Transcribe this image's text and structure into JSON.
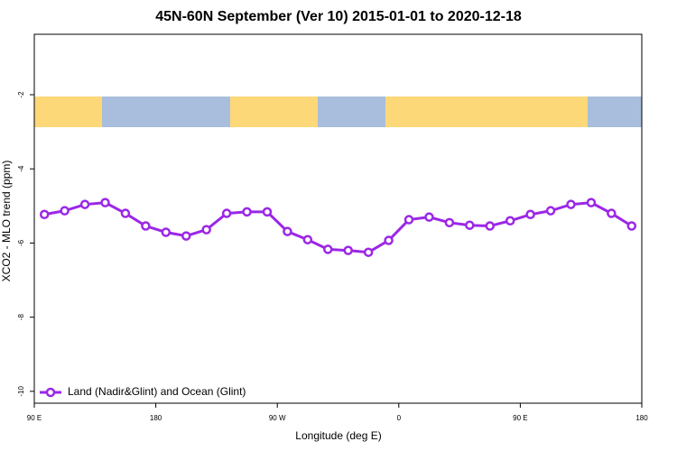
{
  "chart_data": {
    "type": "line",
    "title": "45N-60N September (Ver 10)   2015-01-01 to 2020-12-18",
    "x_label": "Longitude (deg E)",
    "y_label": "XCO2 - MLO trend (ppm)",
    "xlim": [
      90,
      540
    ],
    "xticks": [
      {
        "value": 90,
        "label": "90 E"
      },
      180,
      {
        "value": 270,
        "label": "90 W"
      },
      {
        "value": 360,
        "label": "0"
      },
      {
        "value": 450,
        "label": "90 E"
      },
      {
        "value": 540,
        "label": "180"
      }
    ],
    "ylim": [
      -10.32,
      -0.37
    ],
    "yticks": [
      -2,
      -4,
      -6,
      -8,
      -10
    ],
    "legend": "bottom-left",
    "x": [
      97.5,
      112.5,
      127.5,
      142.5,
      157.5,
      172.5,
      187.5,
      202.5,
      217.5,
      232.5,
      247.5,
      262.5,
      277.5,
      292.5,
      307.5,
      322.5,
      337.5,
      352.5,
      367.5,
      382.5,
      397.5,
      412.5,
      427.5,
      442.5,
      457.5,
      472.5,
      487.5,
      502.5,
      517.5,
      532.5
    ],
    "series": [
      {
        "name": "Land (Nadir&Glint) and Ocean (Glint)",
        "color": "#9b27e6",
        "values": [
          -5.23,
          -5.13,
          -4.96,
          -4.91,
          -5.2,
          -5.54,
          -5.71,
          -5.81,
          -5.64,
          -5.2,
          -5.16,
          -5.16,
          -5.69,
          -5.91,
          -6.17,
          -6.2,
          -6.25,
          -5.93,
          -5.37,
          -5.3,
          -5.45,
          -5.52,
          -5.54,
          -5.4,
          -5.23,
          -5.13,
          -4.96,
          -4.91,
          -5.2,
          -5.54
        ]
      }
    ]
  }
}
